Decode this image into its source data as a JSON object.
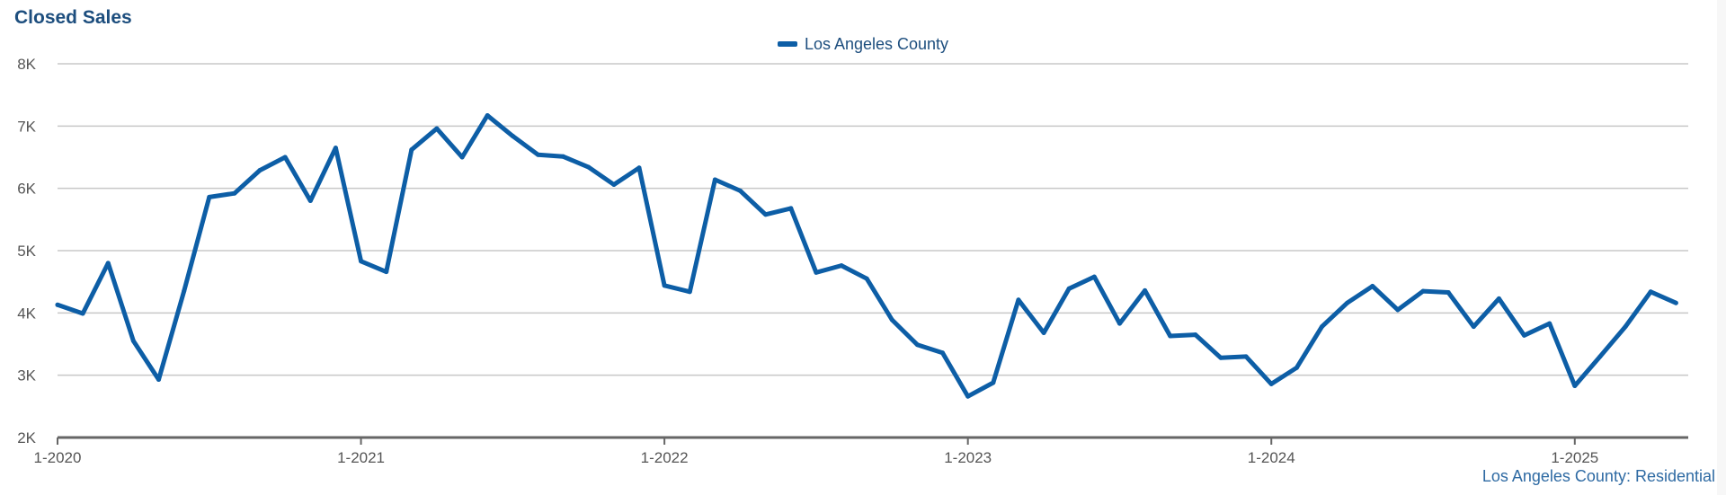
{
  "chart_data": {
    "type": "line",
    "title": "Closed Sales",
    "xlabel": "",
    "ylabel": "",
    "ylim": [
      2000,
      8000
    ],
    "y_ticks": [
      "2K",
      "3K",
      "4K",
      "5K",
      "6K",
      "7K",
      "8K"
    ],
    "y_tick_values": [
      2000,
      3000,
      4000,
      5000,
      6000,
      7000,
      8000
    ],
    "x_ticks": [
      "1-2020",
      "1-2021",
      "1-2022",
      "1-2023",
      "1-2024",
      "1-2025"
    ],
    "x_start": "2020-01",
    "grid": true,
    "legend_position": "top-center",
    "series": [
      {
        "name": "Los Angeles County",
        "color": "#0d5ea6",
        "values": [
          4130,
          3990,
          4800,
          3550,
          2930,
          4350,
          5860,
          5920,
          6290,
          6500,
          5800,
          6650,
          4830,
          4660,
          6620,
          6960,
          6500,
          7170,
          6840,
          6540,
          6510,
          6340,
          6060,
          6330,
          4440,
          4340,
          6140,
          5960,
          5580,
          5680,
          4650,
          4760,
          4550,
          3890,
          3490,
          3360,
          2660,
          2880,
          4210,
          3680,
          4390,
          4580,
          3830,
          4360,
          3630,
          3650,
          3280,
          3300,
          2860,
          3120,
          3780,
          4160,
          4430,
          4050,
          4350,
          4330,
          3780,
          4230,
          3640,
          3830,
          2830,
          3300,
          3780,
          4340,
          4160
        ]
      }
    ],
    "source_note": "Los Angeles County: Residential"
  }
}
